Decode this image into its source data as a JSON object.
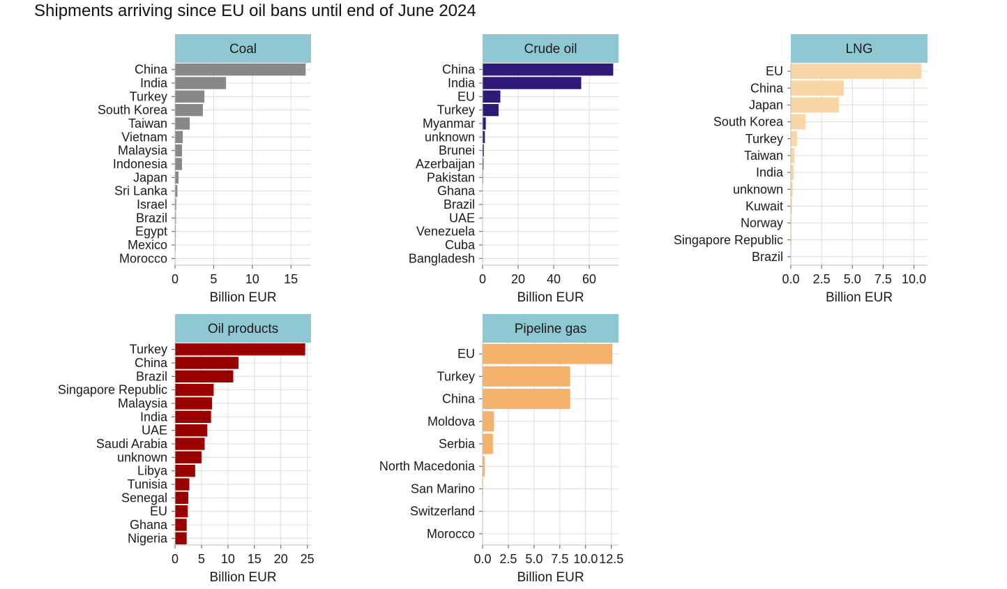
{
  "title": "Shipments arriving since EU oil bans until end of June 2024",
  "colors": {
    "strip": "#8fc8d2",
    "grid": "#dcdcdc",
    "axis": "#bdbdbd",
    "coal": "#888888",
    "crude_oil": "#2e1a78",
    "lng": "#f9d5a7",
    "oil_products": "#9b0000",
    "pipeline_gas": "#f6b26b"
  },
  "chart_data": [
    {
      "type": "bar",
      "orientation": "horizontal",
      "panel": "Coal",
      "color_key": "coal",
      "categories": [
        "China",
        "India",
        "Turkey",
        "South Korea",
        "Taiwan",
        "Vietnam",
        "Malaysia",
        "Indonesia",
        "Japan",
        "Sri Lanka",
        "Israel",
        "Brazil",
        "Egypt",
        "Mexico",
        "Morocco"
      ],
      "values": [
        16.9,
        6.6,
        3.8,
        3.6,
        1.9,
        1.0,
        0.9,
        0.9,
        0.45,
        0.3,
        0.15,
        0.12,
        0.1,
        0.08,
        0.05
      ],
      "xlim": [
        0,
        17.6
      ],
      "xticks": [
        0,
        5,
        10,
        15
      ],
      "xtick_labels": [
        "0",
        "5",
        "10",
        "15"
      ],
      "xlabel": "Billion EUR"
    },
    {
      "type": "bar",
      "orientation": "horizontal",
      "panel": "Crude oil",
      "color_key": "crude_oil",
      "categories": [
        "China",
        "India",
        "EU",
        "Turkey",
        "Myanmar",
        "unknown",
        "Brunei",
        "Azerbaijan",
        "Pakistan",
        "Ghana",
        "Brazil",
        "UAE",
        "Venezuela",
        "Cuba",
        "Bangladesh"
      ],
      "values": [
        73.5,
        55.5,
        10.0,
        9.0,
        1.8,
        1.3,
        0.7,
        0.5,
        0.3,
        0.2,
        0.15,
        0.1,
        0.1,
        0.05,
        0.05
      ],
      "xlim": [
        0,
        76.5
      ],
      "xticks": [
        0,
        20,
        40,
        60
      ],
      "xtick_labels": [
        "0",
        "20",
        "40",
        "60"
      ],
      "xlabel": "Billion EUR"
    },
    {
      "type": "bar",
      "orientation": "horizontal",
      "panel": "LNG",
      "color_key": "lng",
      "categories": [
        "EU",
        "China",
        "Japan",
        "South Korea",
        "Turkey",
        "Taiwan",
        "India",
        "unknown",
        "Kuwait",
        "Norway",
        "Singapore Republic",
        "Brazil"
      ],
      "values": [
        10.6,
        4.3,
        3.9,
        1.2,
        0.5,
        0.3,
        0.25,
        0.15,
        0.1,
        0.05,
        0.05,
        0.03
      ],
      "xlim": [
        0,
        11.1
      ],
      "xticks": [
        0,
        2.5,
        5,
        7.5,
        10
      ],
      "xtick_labels": [
        "0.0",
        "2.5",
        "5.0",
        "7.5",
        "10.0"
      ],
      "xlabel": "Billion EUR"
    },
    {
      "type": "bar",
      "orientation": "horizontal",
      "panel": "Oil products",
      "color_key": "oil_products",
      "categories": [
        "Turkey",
        "China",
        "Brazil",
        "Singapore Republic",
        "Malaysia",
        "India",
        "UAE",
        "Saudi Arabia",
        "unknown",
        "Libya",
        "Tunisia",
        "Senegal",
        "EU",
        "Ghana",
        "Nigeria"
      ],
      "values": [
        24.6,
        12.0,
        11.0,
        7.3,
        7.0,
        6.8,
        6.1,
        5.6,
        5.0,
        3.8,
        2.7,
        2.5,
        2.4,
        2.2,
        2.2
      ],
      "xlim": [
        0,
        25.7
      ],
      "xticks": [
        0,
        5,
        10,
        15,
        20,
        25
      ],
      "xtick_labels": [
        "0",
        "5",
        "10",
        "15",
        "20",
        "25"
      ],
      "xlabel": "Billion EUR"
    },
    {
      "type": "bar",
      "orientation": "horizontal",
      "panel": "Pipeline gas",
      "color_key": "pipeline_gas",
      "categories": [
        "EU",
        "Turkey",
        "China",
        "Moldova",
        "Serbia",
        "North Macedonia",
        "San Marino",
        "Switzerland",
        "Morocco"
      ],
      "values": [
        12.6,
        8.5,
        8.5,
        1.1,
        1.0,
        0.2,
        0.05,
        0.03,
        0.02
      ],
      "xlim": [
        0,
        13.2
      ],
      "xticks": [
        0,
        2.5,
        5,
        7.5,
        10,
        12.5
      ],
      "xtick_labels": [
        "0.0",
        "2.5",
        "5.0",
        "7.5",
        "10.0",
        "12.5"
      ],
      "xlabel": "Billion EUR"
    }
  ]
}
